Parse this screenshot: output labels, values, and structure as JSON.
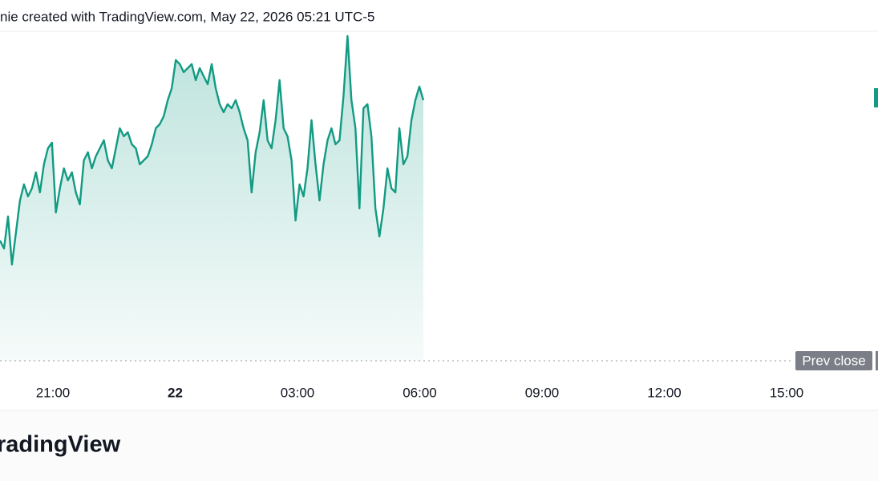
{
  "header": {
    "text": "nie created with TradingView.com, May 22, 2026 05:21 UTC-5"
  },
  "chart_data": {
    "type": "area",
    "color": "#129a83",
    "x_labels": [
      "21:00",
      "22",
      "03:00",
      "06:00",
      "09:00",
      "12:00",
      "15:00"
    ],
    "values": [
      150,
      140,
      180,
      120,
      160,
      200,
      220,
      205,
      215,
      235,
      210,
      245,
      265,
      272,
      185,
      215,
      240,
      225,
      235,
      210,
      195,
      250,
      260,
      240,
      255,
      265,
      275,
      250,
      240,
      265,
      290,
      280,
      285,
      270,
      265,
      245,
      250,
      255,
      270,
      290,
      295,
      305,
      325,
      340,
      375,
      370,
      360,
      365,
      370,
      350,
      365,
      355,
      345,
      370,
      340,
      320,
      310,
      320,
      315,
      325,
      310,
      290,
      275,
      210,
      260,
      285,
      325,
      275,
      265,
      300,
      350,
      290,
      280,
      250,
      175,
      220,
      205,
      240,
      300,
      245,
      200,
      245,
      275,
      290,
      270,
      275,
      330,
      405,
      325,
      290,
      190,
      315,
      320,
      280,
      190,
      155,
      190,
      240,
      215,
      210,
      290,
      245,
      255,
      300,
      325,
      342,
      325
    ],
    "reference_label": "Prev close"
  },
  "footer": {
    "logo": "radingView"
  }
}
